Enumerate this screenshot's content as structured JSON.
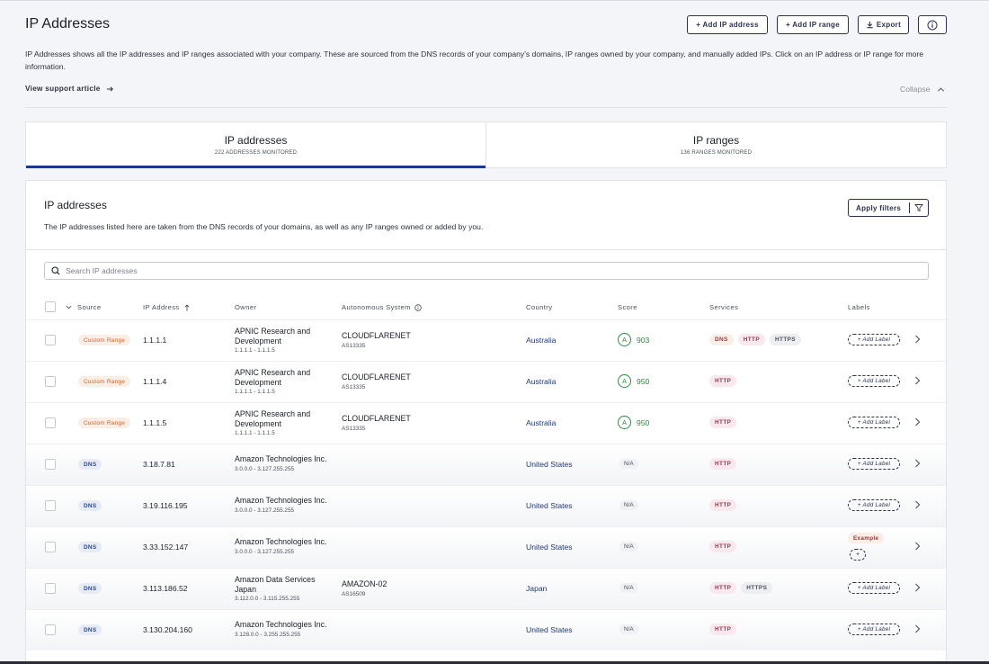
{
  "header": {
    "title": "IP Addresses",
    "buttons": {
      "add_ip": "+ Add IP address",
      "add_range": "+ Add IP range",
      "export": "Export"
    }
  },
  "intro": {
    "description": "IP Addresses shows all the IP addresses and IP ranges associated with your company. These are sourced from the DNS records of your company's domains, IP ranges owned by your company, and manually added IPs. Click on an IP address or IP range for more information.",
    "support_link": "View support article",
    "collapse": "Collapse"
  },
  "tabs": [
    {
      "label": "IP addresses",
      "sub": "222 ADDRESSES MONITORED"
    },
    {
      "label": "IP ranges",
      "sub": "136 RANGES MONITORED"
    }
  ],
  "panel": {
    "title": "IP addresses",
    "description": "The IP addresses listed here are taken from the DNS records of your domains, as well as any IP ranges owned or added by you.",
    "filter_button": "Apply filters",
    "search_placeholder": "Search IP addresses"
  },
  "columns": {
    "source": "Source",
    "ip": "IP Address",
    "owner": "Owner",
    "as": "Autonomous System",
    "country": "Country",
    "score": "Score",
    "services": "Services",
    "labels": "Labels"
  },
  "add_label_text": "+ Add Label",
  "rows": [
    {
      "source": "Custom Range",
      "ip": "1.1.1.1",
      "owner": "APNIC Research and Development",
      "owner_range": "1.1.1.1 - 1.1.1.5",
      "as_name": "CLOUDFLARENET",
      "asn": "AS13335",
      "country": "Australia",
      "grade": "A",
      "score": "903",
      "services": [
        "DNS",
        "HTTP",
        "HTTPS"
      ]
    },
    {
      "source": "Custom Range",
      "ip": "1.1.1.4",
      "owner": "APNIC Research and Development",
      "owner_range": "1.1.1.1 - 1.1.1.5",
      "as_name": "CLOUDFLARENET",
      "asn": "AS13335",
      "country": "Australia",
      "grade": "A",
      "score": "950",
      "services": [
        "HTTP"
      ]
    },
    {
      "source": "Custom Range",
      "ip": "1.1.1.5",
      "owner": "APNIC Research and Development",
      "owner_range": "1.1.1.1 - 1.1.1.5",
      "as_name": "CLOUDFLARENET",
      "asn": "AS13335",
      "country": "Australia",
      "grade": "A",
      "score": "950",
      "services": [
        "HTTP"
      ]
    },
    {
      "source": "DNS",
      "ip": "3.18.7.81",
      "owner": "Amazon Technologies Inc.",
      "owner_range": "3.0.0.0 - 3.127.255.255",
      "as_name": "",
      "asn": "",
      "country": "United States",
      "score_na": "N/A",
      "services": [
        "HTTP"
      ]
    },
    {
      "source": "DNS",
      "ip": "3.19.116.195",
      "owner": "Amazon Technologies Inc.",
      "owner_range": "3.0.0.0 - 3.127.255.255",
      "as_name": "",
      "asn": "",
      "country": "United States",
      "score_na": "N/A",
      "services": [
        "HTTP"
      ]
    },
    {
      "source": "DNS",
      "ip": "3.33.152.147",
      "owner": "Amazon Technologies Inc.",
      "owner_range": "3.0.0.0 - 3.127.255.255",
      "as_name": "",
      "asn": "",
      "country": "United States",
      "score_na": "N/A",
      "services": [
        "HTTP"
      ],
      "label": "Example",
      "label_plus": "+"
    },
    {
      "source": "DNS",
      "ip": "3.113.186.52",
      "owner": "Amazon Data Services Japan",
      "owner_range": "3.112.0.0 - 3.115.255.255",
      "as_name": "AMAZON-02",
      "asn": "AS16509",
      "country": "Japan",
      "score_na": "N/A",
      "services": [
        "HTTP",
        "HTTPS"
      ]
    },
    {
      "source": "DNS",
      "ip": "3.130.204.160",
      "owner": "Amazon Technologies Inc.",
      "owner_range": "3.128.0.0 - 3.255.255.255",
      "as_name": "",
      "asn": "",
      "country": "United States",
      "score_na": "N/A",
      "services": [
        "HTTP"
      ]
    }
  ]
}
